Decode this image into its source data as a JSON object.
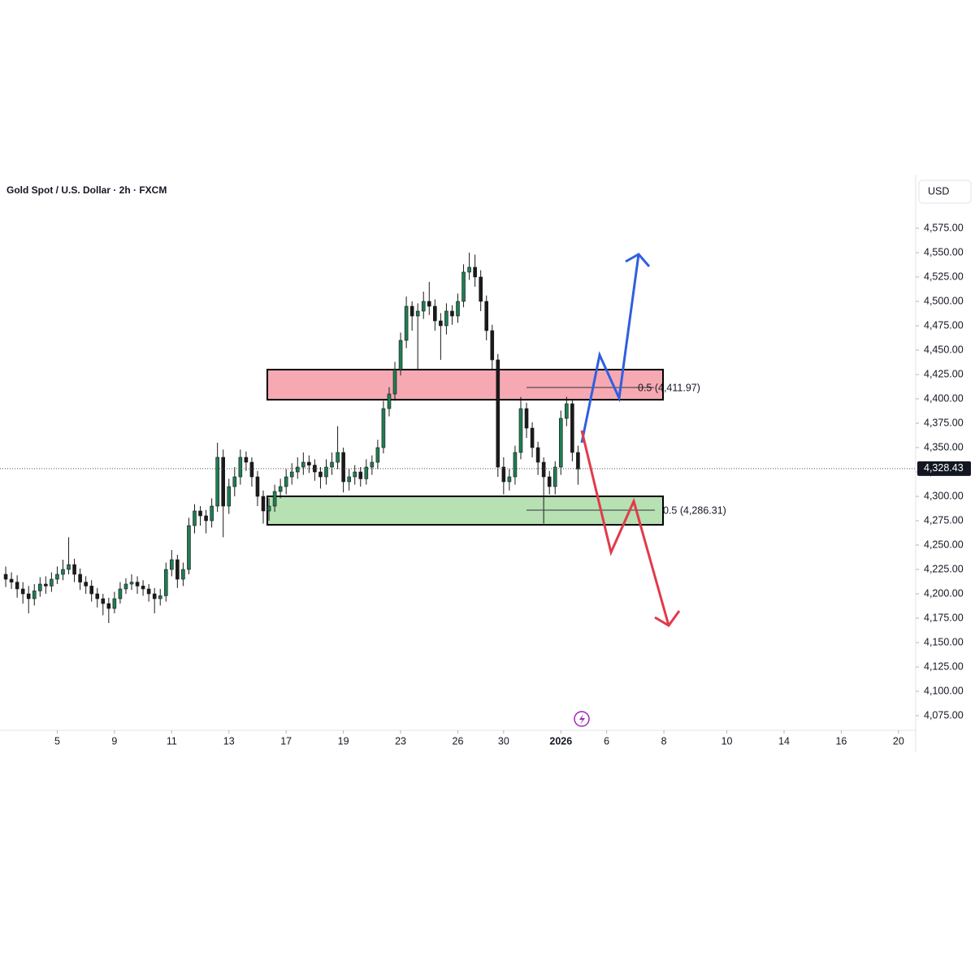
{
  "chart_data": {
    "type": "candlestick",
    "title": "Gold Spot / U.S. Dollar · 2h · FXCM",
    "currency": "USD",
    "up_color": "#1e7d52",
    "down_color": "#1a1a1a",
    "ylim": [
      4060,
      4630
    ],
    "yticks": [
      {
        "value": 4075,
        "label": "4,075.00"
      },
      {
        "value": 4100,
        "label": "4,100.00"
      },
      {
        "value": 4125,
        "label": "4,125.00"
      },
      {
        "value": 4150,
        "label": "4,150.00"
      },
      {
        "value": 4175,
        "label": "4,175.00"
      },
      {
        "value": 4200,
        "label": "4,200.00"
      },
      {
        "value": 4225,
        "label": "4,225.00"
      },
      {
        "value": 4250,
        "label": "4,250.00"
      },
      {
        "value": 4275,
        "label": "4,275.00"
      },
      {
        "value": 4300,
        "label": "4,300.00"
      },
      {
        "value": 4325,
        "label": "4,325.00"
      },
      {
        "value": 4350,
        "label": "4,350.00"
      },
      {
        "value": 4375,
        "label": "4,375.00"
      },
      {
        "value": 4400,
        "label": "4,400.00"
      },
      {
        "value": 4425,
        "label": "4,425.00"
      },
      {
        "value": 4450,
        "label": "4,450.00"
      },
      {
        "value": 4475,
        "label": "4,475.00"
      },
      {
        "value": 4500,
        "label": "4,500.00"
      },
      {
        "value": 4525,
        "label": "4,525.00"
      },
      {
        "value": 4550,
        "label": "4,550.00"
      },
      {
        "value": 4575,
        "label": "4,575.00"
      }
    ],
    "xlim": [
      -1,
      159
    ],
    "xticks": [
      {
        "value": 9,
        "label": "5"
      },
      {
        "value": 19,
        "label": "9"
      },
      {
        "value": 29,
        "label": "11"
      },
      {
        "value": 39,
        "label": "13"
      },
      {
        "value": 49,
        "label": "17"
      },
      {
        "value": 59,
        "label": "19"
      },
      {
        "value": 69,
        "label": "23"
      },
      {
        "value": 79,
        "label": "26"
      },
      {
        "value": 87,
        "label": "30"
      },
      {
        "value": 97,
        "label": "2026"
      },
      {
        "value": 105,
        "label": "6"
      },
      {
        "value": 115,
        "label": "8"
      },
      {
        "value": 126,
        "label": "10"
      },
      {
        "value": 136,
        "label": "14"
      },
      {
        "value": 146,
        "label": "16"
      },
      {
        "value": 156,
        "label": "20"
      }
    ],
    "last_price": {
      "value": 4328.43,
      "label": "4,328.43"
    },
    "annotations": [
      "0.5 (4,411.97)",
      "0.5 (4,286.31)"
    ],
    "open": [
      4220,
      4215,
      4212,
      4205,
      4200,
      4195,
      4203,
      4210,
      4208,
      4215,
      4220,
      4225,
      4230,
      4220,
      4212,
      4208,
      4200,
      4195,
      4190,
      4185,
      4195,
      4205,
      4210,
      4212,
      4208,
      4205,
      4200,
      4195,
      4198,
      4225,
      4235,
      4215,
      4225,
      4270,
      4285,
      4280,
      4275,
      4290,
      4340,
      4290,
      4310,
      4320,
      4340,
      4335,
      4320,
      4300,
      4285,
      4290,
      4305,
      4310,
      4320,
      4325,
      4330,
      4335,
      4332,
      4325,
      4320,
      4330,
      4335,
      4345,
      4315,
      4320,
      4325,
      4318,
      4330,
      4335,
      4350,
      4390,
      4405,
      4430,
      4460,
      4495,
      4485,
      4490,
      4500,
      4495,
      4480,
      4475,
      4490,
      4485,
      4500,
      4530,
      4535,
      4525,
      4500,
      4470,
      4440,
      4330,
      4315,
      4320,
      4345,
      4390,
      4370,
      4350,
      4335,
      4320,
      4310,
      4330,
      4380,
      4395,
      4345
    ],
    "high": [
      4228,
      4222,
      4219,
      4212,
      4208,
      4210,
      4217,
      4218,
      4222,
      4228,
      4235,
      4258,
      4236,
      4226,
      4218,
      4214,
      4206,
      4200,
      4196,
      4202,
      4212,
      4216,
      4220,
      4218,
      4214,
      4210,
      4206,
      4205,
      4232,
      4245,
      4240,
      4232,
      4278,
      4292,
      4290,
      4286,
      4298,
      4355,
      4348,
      4318,
      4330,
      4348,
      4346,
      4340,
      4326,
      4306,
      4298,
      4312,
      4318,
      4328,
      4334,
      4340,
      4345,
      4342,
      4338,
      4330,
      4338,
      4345,
      4372,
      4350,
      4328,
      4332,
      4330,
      4338,
      4342,
      4358,
      4398,
      4412,
      4438,
      4468,
      4505,
      4500,
      4498,
      4510,
      4520,
      4502,
      4488,
      4498,
      4496,
      4508,
      4538,
      4550,
      4548,
      4532,
      4506,
      4476,
      4446,
      4340,
      4328,
      4352,
      4402,
      4396,
      4376,
      4356,
      4340,
      4326,
      4336,
      4388,
      4402,
      4400,
      4352
    ],
    "low": [
      4207,
      4205,
      4196,
      4190,
      4180,
      4188,
      4197,
      4200,
      4202,
      4210,
      4214,
      4220,
      4212,
      4204,
      4200,
      4192,
      4186,
      4178,
      4170,
      4180,
      4190,
      4200,
      4204,
      4200,
      4198,
      4192,
      4180,
      4188,
      4192,
      4218,
      4206,
      4208,
      4220,
      4262,
      4270,
      4262,
      4268,
      4284,
      4258,
      4282,
      4300,
      4312,
      4326,
      4310,
      4290,
      4272,
      4275,
      4284,
      4298,
      4302,
      4312,
      4318,
      4322,
      4324,
      4316,
      4308,
      4312,
      4322,
      4328,
      4304,
      4306,
      4312,
      4310,
      4312,
      4322,
      4328,
      4344,
      4382,
      4398,
      4424,
      4452,
      4470,
      4430,
      4482,
      4486,
      4470,
      4440,
      4466,
      4476,
      4478,
      4494,
      4522,
      4515,
      4490,
      4460,
      4430,
      4320,
      4302,
      4306,
      4312,
      4338,
      4360,
      4340,
      4322,
      4272,
      4302,
      4302,
      4322,
      4372,
      4336,
      4312
    ],
    "close": [
      4215,
      4212,
      4205,
      4200,
      4195,
      4203,
      4210,
      4208,
      4215,
      4220,
      4225,
      4230,
      4220,
      4212,
      4208,
      4200,
      4195,
      4190,
      4185,
      4195,
      4205,
      4210,
      4212,
      4208,
      4205,
      4200,
      4195,
      4198,
      4225,
      4235,
      4215,
      4225,
      4270,
      4285,
      4280,
      4275,
      4290,
      4340,
      4290,
      4310,
      4320,
      4340,
      4335,
      4320,
      4300,
      4285,
      4290,
      4305,
      4310,
      4320,
      4325,
      4330,
      4335,
      4332,
      4325,
      4320,
      4330,
      4335,
      4345,
      4315,
      4320,
      4325,
      4318,
      4330,
      4335,
      4350,
      4390,
      4405,
      4430,
      4460,
      4495,
      4485,
      4490,
      4500,
      4495,
      4480,
      4475,
      4490,
      4485,
      4500,
      4530,
      4535,
      4525,
      4500,
      4470,
      4440,
      4330,
      4315,
      4320,
      4345,
      4390,
      4370,
      4350,
      4335,
      4320,
      4310,
      4330,
      4380,
      4395,
      4345,
      4328
    ]
  }
}
